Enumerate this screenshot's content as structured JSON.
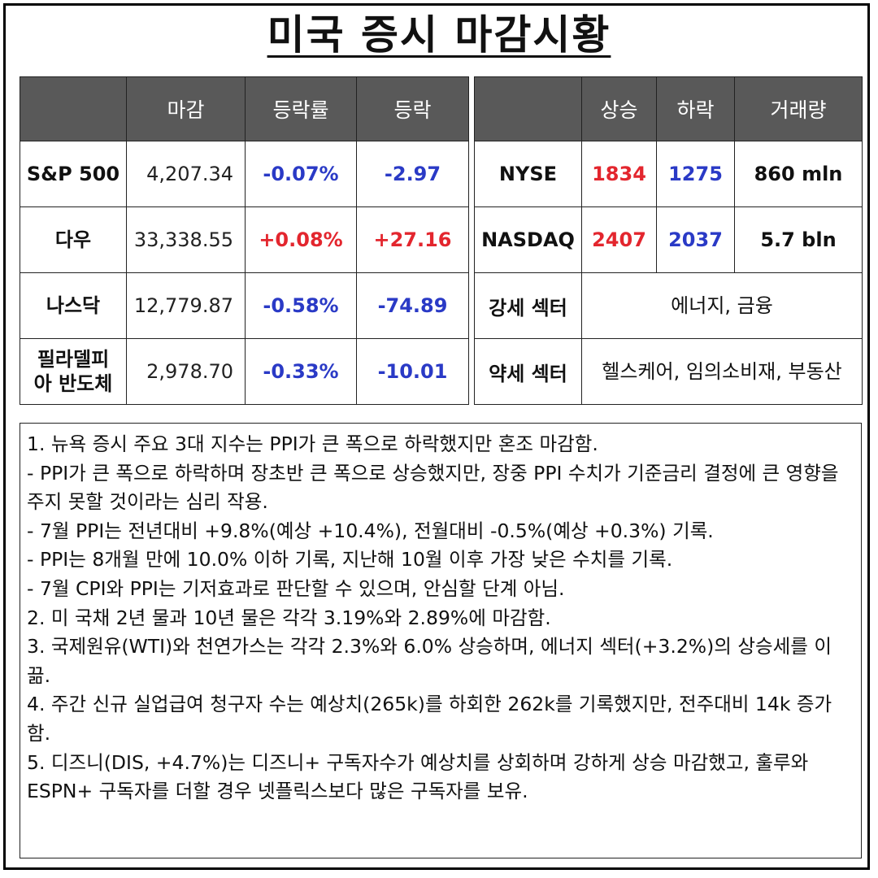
{
  "title": "미국 증시 마감시황",
  "index_table": {
    "headers": [
      "",
      "마감",
      "등락률",
      "등락"
    ],
    "rows": [
      {
        "name": "S&P 500",
        "close": "4,207.34",
        "rate": "-0.07%",
        "change": "-2.97",
        "direction": "down"
      },
      {
        "name": "다우",
        "close": "33,338.55",
        "rate": "+0.08%",
        "change": "+27.16",
        "direction": "up"
      },
      {
        "name": "나스닥",
        "close": "12,779.87",
        "rate": "-0.58%",
        "change": "-74.89",
        "direction": "down"
      },
      {
        "name": "필라델피아 반도체",
        "close": "2,978.70",
        "rate": "-0.33%",
        "change": "-10.01",
        "direction": "down"
      }
    ]
  },
  "market_table": {
    "headers": [
      "",
      "상승",
      "하락",
      "거래량"
    ],
    "rows": [
      {
        "name": "NYSE",
        "up": "1834",
        "down": "1275",
        "volume": "860 mln"
      },
      {
        "name": "NASDAQ",
        "up": "2407",
        "down": "2037",
        "volume": "5.7 bln"
      }
    ],
    "strong_sector_label": "강세 섹터",
    "strong_sector_value": "에너지, 금융",
    "weak_sector_label": "약세 섹터",
    "weak_sector_value": "헬스케어, 임의소비재, 부동산"
  },
  "colors": {
    "header_bg": "#595959",
    "up": "#e3262e",
    "down": "#2a3ac6"
  },
  "notes": [
    "1. 뉴욕 증시 주요 3대 지수는 PPI가 큰 폭으로 하락했지만 혼조 마감함.",
    "- PPI가 큰 폭으로 하락하며 장초반 큰 폭으로 상승했지만, 장중 PPI 수치가 기준금리 결정에 큰 영향을 주지 못할 것이라는 심리 작용.",
    "- 7월 PPI는 전년대비 +9.8%(예상 +10.4%), 전월대비 -0.5%(예상 +0.3%) 기록.",
    "- PPI는 8개월 만에 10.0% 이하 기록, 지난해 10월 이후 가장 낮은 수치를 기록.",
    "- 7월 CPI와 PPI는 기저효과로 판단할 수 있으며, 안심할 단계 아님.",
    "2. 미 국채 2년 물과 10년 물은 각각 3.19%와 2.89%에 마감함.",
    "3. 국제원유(WTI)와 천연가스는 각각 2.3%와 6.0% 상승하며, 에너지 섹터(+3.2%)의 상승세를 이끎.",
    "4. 주간 신규 실업급여 청구자 수는 예상치(265k)를 하회한 262k를 기록했지만, 전주대비 14k 증가함.",
    "5. 디즈니(DIS, +4.7%)는 디즈니+ 구독자수가 예상치를 상회하며 강하게 상승 마감했고, 훌루와 ESPN+ 구독자를 더할 경우 넷플릭스보다 많은 구독자를 보유."
  ]
}
